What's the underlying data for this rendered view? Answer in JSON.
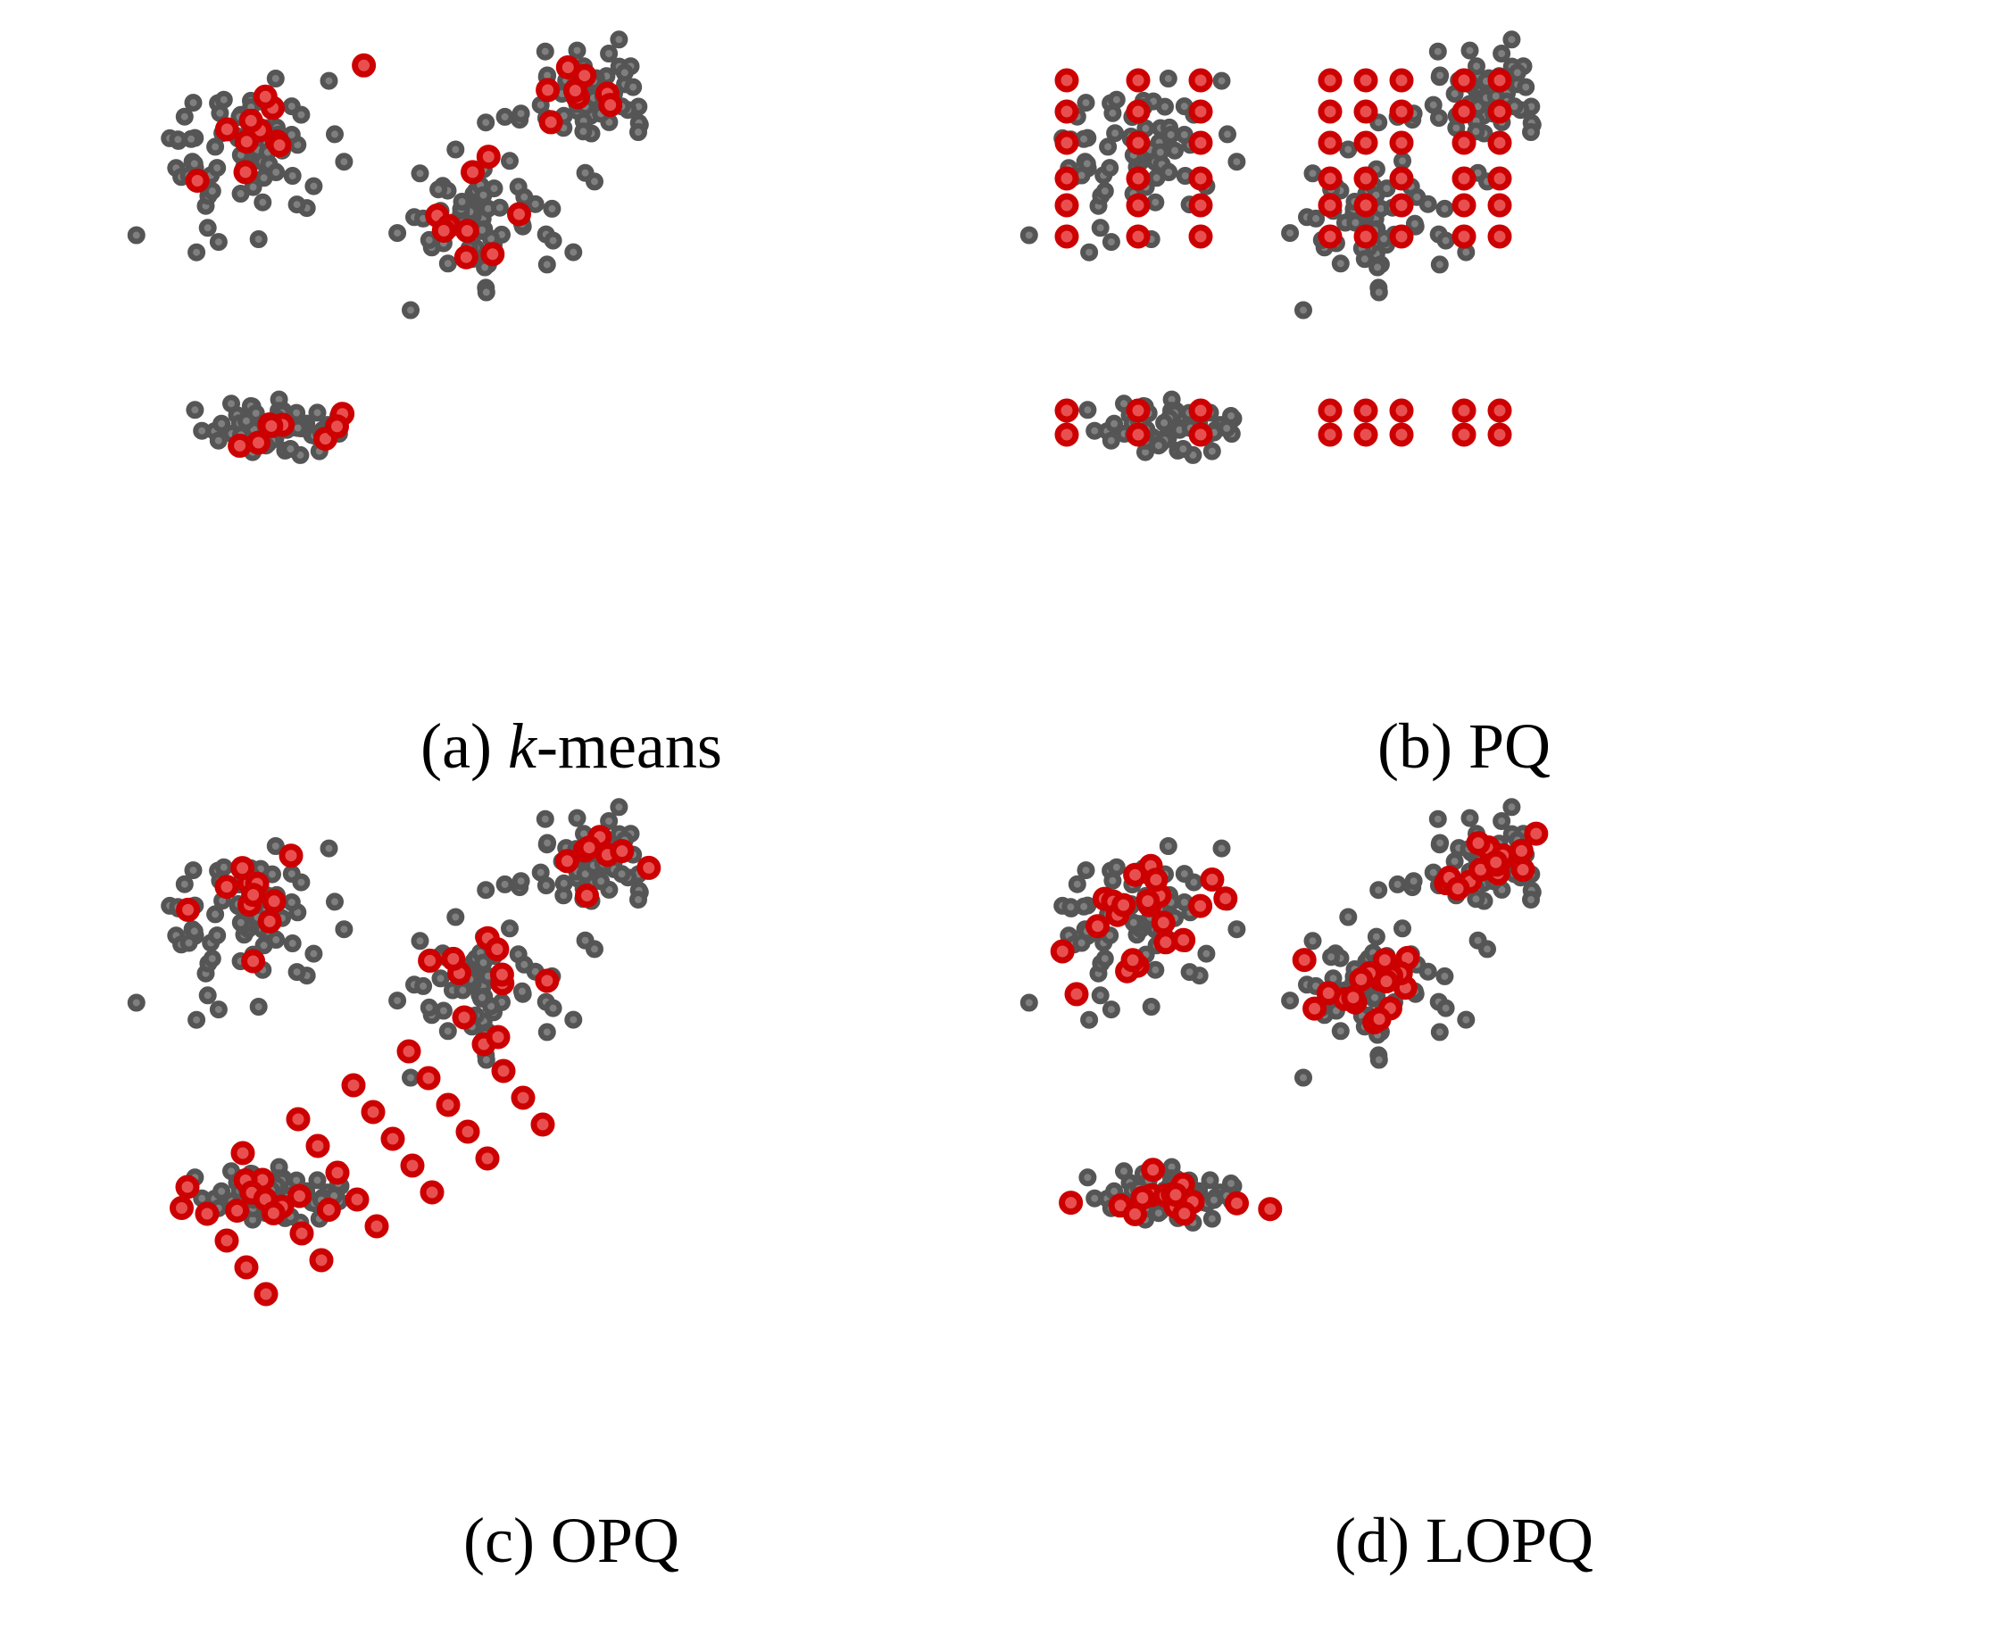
{
  "figure": {
    "panels": [
      {
        "id": "a",
        "label_prefix": "(a) ",
        "label_italic": "k",
        "label_suffix": "-means"
      },
      {
        "id": "b",
        "label_prefix": "(b) PQ",
        "label_italic": "",
        "label_suffix": ""
      },
      {
        "id": "c",
        "label_prefix": "(c) OPQ",
        "label_italic": "",
        "label_suffix": ""
      },
      {
        "id": "d",
        "label_prefix": "(d) LOPQ",
        "label_italic": "",
        "label_suffix": ""
      }
    ]
  },
  "colors": {
    "data_point_fill": "#7f7f7f",
    "data_point_stroke": "#555555",
    "centroid_fill": "#e85050",
    "centroid_stroke": "#cc0000"
  }
}
